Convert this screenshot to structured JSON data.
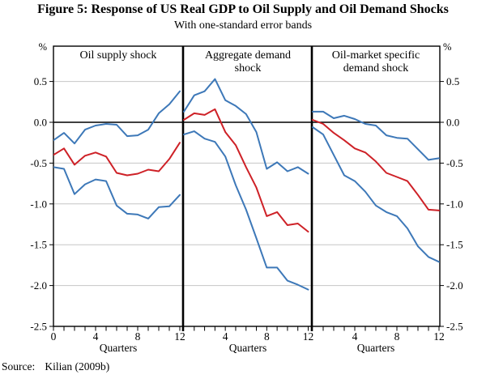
{
  "figure": {
    "source_label": "Source:",
    "source_value": "Kilian (2009b)"
  },
  "chart_data": {
    "type": "line",
    "title": "Figure 5: Response of US Real GDP to Oil Supply and Oil Demand Shocks",
    "subtitle": "With one-standard error bands",
    "xlabel": "Quarters",
    "x": [
      0,
      1,
      2,
      3,
      4,
      5,
      6,
      7,
      8,
      9,
      10,
      11,
      12
    ],
    "ylim": [
      -2.5,
      0.93
    ],
    "y_unit": "%",
    "yticks": [
      0.5,
      0.0,
      -0.5,
      -1.0,
      -1.5,
      -2.0,
      -2.5
    ],
    "ytick_labels": [
      "0.5",
      "0.0",
      "-0.5",
      "-1.0",
      "-1.5",
      "-2.0",
      "-2.5"
    ],
    "grid": true,
    "gridline_values": [
      0.5,
      -0.5,
      -1.0,
      -1.5,
      -2.0
    ],
    "zero_line": 0.0,
    "colors": {
      "band": "#3D78B8",
      "response": "#CE2127",
      "grid": "#c6c6c6",
      "axis": "#000000"
    },
    "panels": [
      {
        "title": "Oil supply shock",
        "xtick_labels": [
          0,
          4,
          8,
          12
        ],
        "series": [
          {
            "name": "upper one-standard-error band",
            "color_key": "band",
            "values": [
              -0.22,
              -0.13,
              -0.26,
              -0.09,
              -0.04,
              -0.02,
              -0.03,
              -0.17,
              -0.16,
              -0.09,
              0.11,
              0.22,
              0.38
            ]
          },
          {
            "name": "point estimate response",
            "color_key": "response",
            "values": [
              -0.4,
              -0.32,
              -0.52,
              -0.41,
              -0.37,
              -0.42,
              -0.62,
              -0.65,
              -0.63,
              -0.58,
              -0.6,
              -0.45,
              -0.25
            ]
          },
          {
            "name": "lower one-standard-error band",
            "color_key": "band",
            "values": [
              -0.55,
              -0.57,
              -0.88,
              -0.76,
              -0.7,
              -0.72,
              -1.02,
              -1.12,
              -1.13,
              -1.18,
              -1.04,
              -1.03,
              -0.89
            ]
          }
        ]
      },
      {
        "title": "Aggregate demand\nshock",
        "xtick_labels": [
          4,
          8,
          12
        ],
        "series": [
          {
            "name": "upper one-standard-error band",
            "color_key": "band",
            "values": [
              0.13,
              0.33,
              0.38,
              0.53,
              0.27,
              0.2,
              0.1,
              -0.12,
              -0.57,
              -0.49,
              -0.6,
              -0.55,
              -0.63
            ]
          },
          {
            "name": "point estimate response",
            "color_key": "response",
            "values": [
              0.03,
              0.11,
              0.09,
              0.16,
              -0.12,
              -0.28,
              -0.55,
              -0.8,
              -1.15,
              -1.1,
              -1.26,
              -1.24,
              -1.34
            ]
          },
          {
            "name": "lower one-standard-error band",
            "color_key": "band",
            "values": [
              -0.15,
              -0.11,
              -0.2,
              -0.24,
              -0.42,
              -0.77,
              -1.07,
              -1.42,
              -1.78,
              -1.78,
              -1.94,
              -1.99,
              -2.05
            ]
          }
        ]
      },
      {
        "title": "Oil-market specific\ndemand shock",
        "xtick_labels": [
          4,
          8,
          12
        ],
        "series": [
          {
            "name": "upper one-standard-error band",
            "color_key": "band",
            "values": [
              0.13,
              0.13,
              0.05,
              0.08,
              0.04,
              -0.02,
              -0.04,
              -0.16,
              -0.19,
              -0.2,
              -0.33,
              -0.46,
              -0.44
            ]
          },
          {
            "name": "point estimate response",
            "color_key": "response",
            "values": [
              0.03,
              -0.02,
              -0.13,
              -0.22,
              -0.32,
              -0.37,
              -0.48,
              -0.62,
              -0.67,
              -0.72,
              -0.89,
              -1.07,
              -1.08
            ]
          },
          {
            "name": "lower one-standard-error band",
            "color_key": "band",
            "values": [
              -0.06,
              -0.15,
              -0.4,
              -0.65,
              -0.72,
              -0.85,
              -1.02,
              -1.1,
              -1.15,
              -1.3,
              -1.52,
              -1.65,
              -1.71
            ]
          }
        ]
      }
    ]
  }
}
